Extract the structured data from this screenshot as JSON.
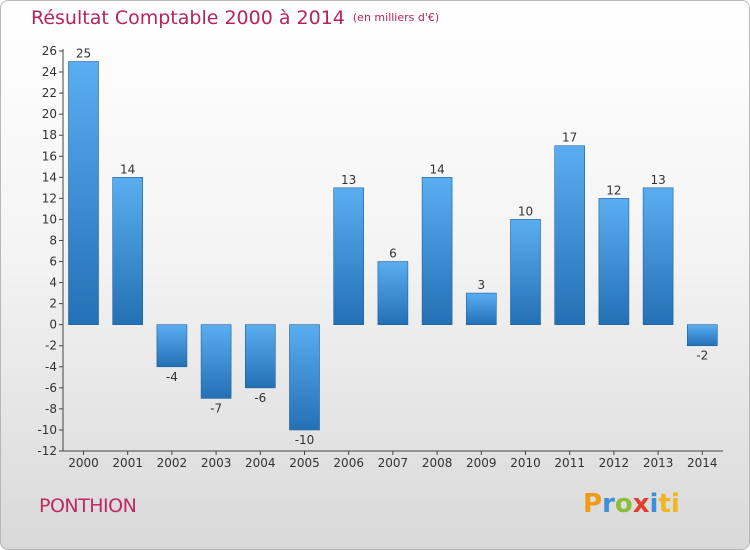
{
  "title": "Résultat Comptable 2000 à 2014",
  "subtitle": "(en milliers d'€)",
  "commune": "PONTHION",
  "logo": {
    "text": "Proxiti",
    "letters": [
      "P",
      "r",
      "o",
      "x",
      "i",
      "ti"
    ]
  },
  "colors": {
    "title": "#b5245d",
    "bar_light": "#5aaef0",
    "bar_dark": "#2470b4"
  },
  "chart_data": {
    "type": "bar",
    "categories": [
      "2000",
      "2001",
      "2002",
      "2003",
      "2004",
      "2005",
      "2006",
      "2007",
      "2008",
      "2009",
      "2010",
      "2011",
      "2012",
      "2013",
      "2014"
    ],
    "values": [
      25,
      14,
      -4,
      -7,
      -6,
      -10,
      13,
      6,
      14,
      3,
      10,
      17,
      12,
      13,
      -2
    ],
    "data_labels": [
      "25",
      "14",
      "-4",
      "-7",
      "-6",
      "-10",
      "13",
      "6",
      "14",
      "3",
      "10",
      "17",
      "12",
      "13",
      "-2"
    ],
    "ylim": [
      -12,
      26
    ],
    "yticks": [
      26,
      24,
      22,
      20,
      18,
      16,
      14,
      12,
      10,
      8,
      6,
      4,
      2,
      0,
      -2,
      -4,
      -6,
      -8,
      -10,
      -12
    ],
    "grid": false,
    "legend": "none"
  }
}
